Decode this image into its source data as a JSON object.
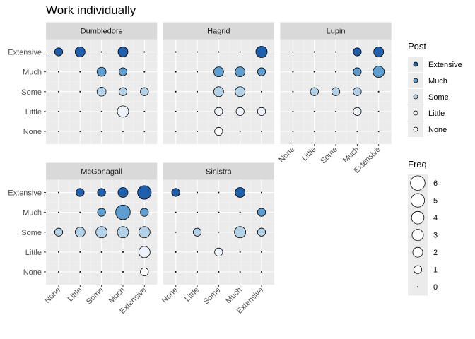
{
  "chart_data": {
    "type": "scatter",
    "title": "Work individually",
    "levels": [
      "None",
      "Little",
      "Some",
      "Much",
      "Extensive"
    ],
    "x_levels": [
      "None",
      "Little",
      "Some",
      "Much",
      "Extensive"
    ],
    "y_levels": [
      "None",
      "Little",
      "Some",
      "Much",
      "Extensive"
    ],
    "xlabel": "",
    "ylabel": "",
    "grid": true,
    "legend_placement": "right",
    "color_legend": {
      "title": "Post",
      "entries": [
        {
          "label": "Extensive",
          "color": "#1f5fab"
        },
        {
          "label": "Much",
          "color": "#5e9ed0"
        },
        {
          "label": "Some",
          "color": "#b4d2e7"
        },
        {
          "label": "Little",
          "color": "#eef3fb"
        },
        {
          "label": "None",
          "color": "#ffffff"
        }
      ]
    },
    "size_legend": {
      "title": "Freq",
      "values": [
        6,
        5,
        4,
        3,
        2,
        1,
        0
      ]
    },
    "panels": [
      {
        "name": "Dumbledore",
        "points": [
          {
            "x": "None",
            "y": "Extensive",
            "freq": 1
          },
          {
            "x": "Little",
            "y": "Extensive",
            "freq": 2
          },
          {
            "x": "Much",
            "y": "Extensive",
            "freq": 2
          },
          {
            "x": "Some",
            "y": "Much",
            "freq": 1.5
          },
          {
            "x": "Much",
            "y": "Much",
            "freq": 1
          },
          {
            "x": "Some",
            "y": "Some",
            "freq": 1.5
          },
          {
            "x": "Much",
            "y": "Some",
            "freq": 1
          },
          {
            "x": "Extensive",
            "y": "Some",
            "freq": 1
          },
          {
            "x": "Much",
            "y": "Little",
            "freq": 3
          }
        ]
      },
      {
        "name": "Hagrid",
        "points": [
          {
            "x": "Extensive",
            "y": "Extensive",
            "freq": 3
          },
          {
            "x": "Some",
            "y": "Much",
            "freq": 2
          },
          {
            "x": "Much",
            "y": "Much",
            "freq": 2
          },
          {
            "x": "Extensive",
            "y": "Much",
            "freq": 1
          },
          {
            "x": "Some",
            "y": "Some",
            "freq": 2
          },
          {
            "x": "Much",
            "y": "Some",
            "freq": 2
          },
          {
            "x": "Some",
            "y": "Little",
            "freq": 1
          },
          {
            "x": "Much",
            "y": "Little",
            "freq": 1
          },
          {
            "x": "Extensive",
            "y": "Little",
            "freq": 1
          },
          {
            "x": "Some",
            "y": "None",
            "freq": 1
          }
        ]
      },
      {
        "name": "Lupin",
        "points": [
          {
            "x": "Much",
            "y": "Extensive",
            "freq": 1
          },
          {
            "x": "Extensive",
            "y": "Extensive",
            "freq": 2
          },
          {
            "x": "Much",
            "y": "Much",
            "freq": 1
          },
          {
            "x": "Extensive",
            "y": "Much",
            "freq": 3
          },
          {
            "x": "Little",
            "y": "Some",
            "freq": 1
          },
          {
            "x": "Some",
            "y": "Some",
            "freq": 1
          },
          {
            "x": "Much",
            "y": "Some",
            "freq": 1
          },
          {
            "x": "Much",
            "y": "Little",
            "freq": 1
          }
        ]
      },
      {
        "name": "McGonagall",
        "points": [
          {
            "x": "Little",
            "y": "Extensive",
            "freq": 1
          },
          {
            "x": "Some",
            "y": "Extensive",
            "freq": 1
          },
          {
            "x": "Much",
            "y": "Extensive",
            "freq": 2
          },
          {
            "x": "Extensive",
            "y": "Extensive",
            "freq": 5
          },
          {
            "x": "Some",
            "y": "Much",
            "freq": 1
          },
          {
            "x": "Much",
            "y": "Much",
            "freq": 6
          },
          {
            "x": "Extensive",
            "y": "Much",
            "freq": 1
          },
          {
            "x": "None",
            "y": "Some",
            "freq": 1
          },
          {
            "x": "Little",
            "y": "Some",
            "freq": 2
          },
          {
            "x": "Some",
            "y": "Some",
            "freq": 3
          },
          {
            "x": "Much",
            "y": "Some",
            "freq": 3
          },
          {
            "x": "Extensive",
            "y": "Some",
            "freq": 3
          },
          {
            "x": "Extensive",
            "y": "Little",
            "freq": 3
          },
          {
            "x": "Extensive",
            "y": "None",
            "freq": 1
          }
        ]
      },
      {
        "name": "Sinistra",
        "points": [
          {
            "x": "None",
            "y": "Extensive",
            "freq": 1
          },
          {
            "x": "Much",
            "y": "Extensive",
            "freq": 2
          },
          {
            "x": "Extensive",
            "y": "Much",
            "freq": 1
          },
          {
            "x": "Little",
            "y": "Some",
            "freq": 1
          },
          {
            "x": "Much",
            "y": "Some",
            "freq": 3
          },
          {
            "x": "Extensive",
            "y": "Some",
            "freq": 1
          },
          {
            "x": "Some",
            "y": "Little",
            "freq": 1
          }
        ]
      }
    ]
  }
}
